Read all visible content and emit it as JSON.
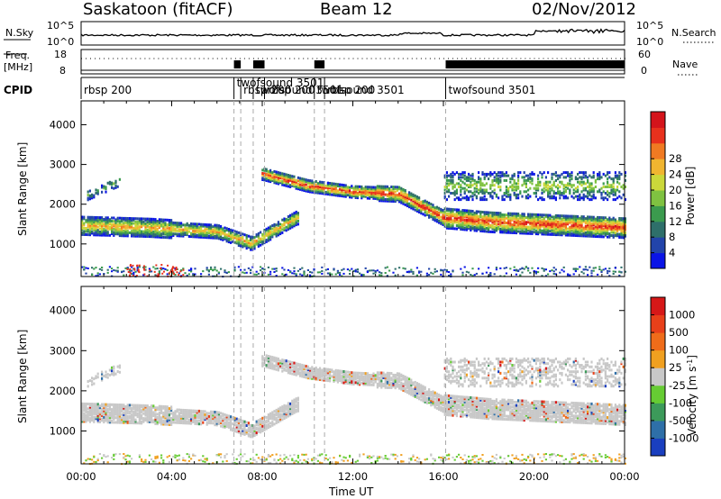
{
  "header": {
    "title": "Saskatoon (fitACF)",
    "beam": "Beam 12",
    "date": "02/Nov/2012"
  },
  "noise_panel": {
    "left_label": "N.Sky",
    "left_ticks": [
      "10^5",
      "10^0"
    ],
    "right_label": "N.Search",
    "right_ticks": [
      "10^5",
      "10^0"
    ]
  },
  "freq_panel": {
    "left_label_1": "Freq.",
    "left_label_2": "[MHz]",
    "left_ticks": [
      "18",
      "8"
    ],
    "right_label": "Nave",
    "right_ticks": [
      "60",
      "0"
    ]
  },
  "cpid": {
    "label": "CPID",
    "programs": [
      {
        "label": "rbsp 200",
        "start_hour": 0.0
      },
      {
        "label": "twofsound 3501",
        "start_hour": 6.75
      },
      {
        "label": "rbsp 200",
        "start_hour": 7.05
      },
      {
        "label": "twofsound 3501",
        "start_hour": 7.6
      },
      {
        "label": "rbsp 200",
        "start_hour": 8.1
      },
      {
        "label": "twofsound 3501",
        "start_hour": 10.3
      },
      {
        "label": "rbsp 200",
        "start_hour": 10.75
      },
      {
        "label": "twofsound 3501",
        "start_hour": 16.1
      }
    ]
  },
  "chart_data": [
    {
      "type": "heatmap",
      "parameter": "power",
      "xlabel": "",
      "ylabel": "Slant Range [km]",
      "xlim": [
        0,
        24
      ],
      "ylim": [
        180,
        4600
      ],
      "yticks": [
        1000,
        2000,
        3000,
        4000
      ],
      "colorbar": {
        "label": "Power [dB]",
        "ticks": [
          4,
          8,
          12,
          16,
          20,
          24,
          28
        ],
        "colors": [
          "#0a14e6",
          "#2244aa",
          "#2e6f6a",
          "#3b9b4e",
          "#7fc241",
          "#cbd83a",
          "#f0b530",
          "#f07a22",
          "#e8311d",
          "#d4141b"
        ]
      },
      "echo_bands": [
        {
          "name": "near-range band",
          "hours": [
            0.0,
            3.0,
            6.0,
            7.5,
            9.5
          ],
          "range_km": [
            1500,
            1450,
            1350,
            1050,
            1700
          ],
          "power_db": 20
        },
        {
          "name": "far band",
          "hours": [
            8.0,
            10.0,
            12.0,
            14.0,
            16.0,
            18.0,
            20.0,
            24.0
          ],
          "range_km": [
            2800,
            2500,
            2350,
            2300,
            1700,
            1600,
            1550,
            1450
          ],
          "power_db": 26
        }
      ]
    },
    {
      "type": "heatmap",
      "parameter": "velocity",
      "xlabel": "Time UT",
      "ylabel": "Slant Range [km]",
      "xlim": [
        0,
        24
      ],
      "ylim": [
        180,
        4600
      ],
      "xticks": [
        "00:00",
        "04:00",
        "08:00",
        "12:00",
        "16:00",
        "20:00",
        "00:00"
      ],
      "yticks": [
        1000,
        2000,
        3000,
        4000
      ],
      "colorbar": {
        "label": "Velocity [m s^-1]",
        "ticks": [
          "1000",
          "500",
          "100",
          "25",
          "-25",
          "-100",
          "-500",
          "-1000"
        ],
        "colors": [
          "#1a3fbf",
          "#2e6fa8",
          "#3c9a5a",
          "#66cc33",
          "#c8c8c8",
          "#f0a020",
          "#ef6c1a",
          "#e8401a",
          "#d61818"
        ]
      }
    }
  ]
}
